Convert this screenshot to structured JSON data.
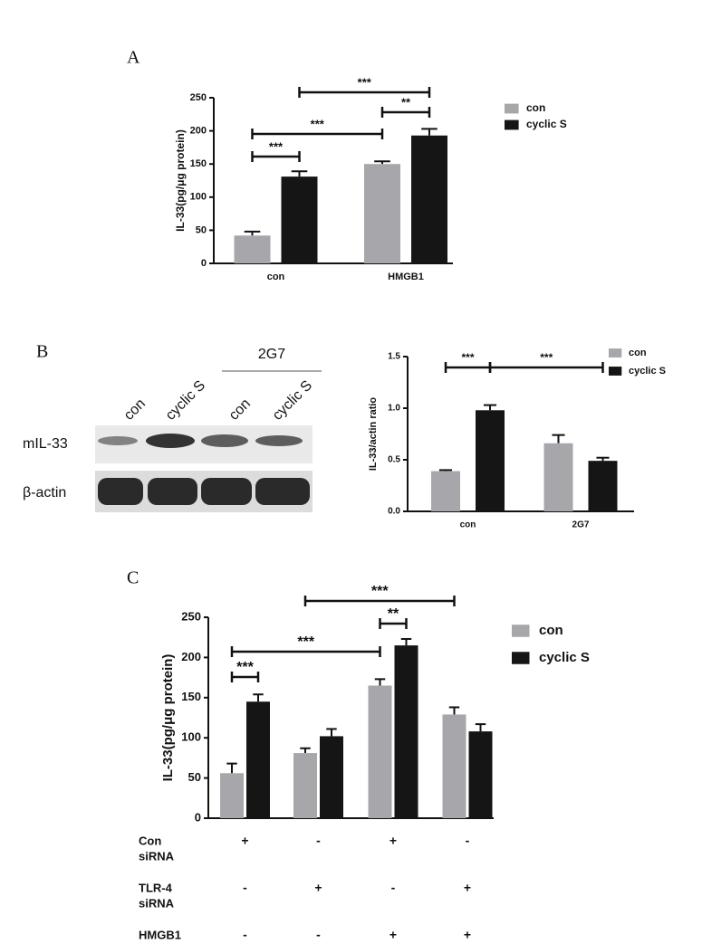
{
  "chart_data": [
    {
      "type": "bar",
      "panel_label": "A",
      "y_label": "IL-33(pg/μg protein)",
      "categories": [
        "con",
        "HMGB1"
      ],
      "series": [
        {
          "name": "con",
          "color": "#a7a6ab",
          "values": [
            42,
            150
          ],
          "errors": [
            6,
            4
          ]
        },
        {
          "name": "cyclic S",
          "color": "#151515",
          "values": [
            131,
            193
          ],
          "errors": [
            8,
            10
          ]
        }
      ],
      "ylim": [
        0,
        250
      ],
      "yticks": [
        0,
        50,
        100,
        150,
        200,
        250
      ],
      "annotations": [
        "***",
        "***",
        "**",
        "***"
      ],
      "legend": "right"
    },
    {
      "type": "bar",
      "panel_label": "B",
      "y_label": "IL-33/actin ratio",
      "categories": [
        "con",
        "2G7"
      ],
      "series": [
        {
          "name": "con",
          "color": "#a7a6ab",
          "values": [
            0.39,
            0.66
          ],
          "errors": [
            0.01,
            0.08
          ]
        },
        {
          "name": "cyclic S",
          "color": "#151515",
          "values": [
            0.98,
            0.49
          ],
          "errors": [
            0.05,
            0.03
          ]
        }
      ],
      "ylim": [
        0,
        1.5
      ],
      "yticks": [
        {
          "value": 0,
          "label": "0.0"
        },
        {
          "value": 0.5,
          "label": "0.5"
        },
        {
          "value": 1,
          "label": "1.0"
        },
        {
          "value": 1.5,
          "label": "1.5"
        }
      ],
      "annotations": [
        "***",
        "***"
      ],
      "legend": "right",
      "blot": {
        "rows": [
          "mIL-33",
          "β-actin"
        ],
        "lanes": [
          "con",
          "cyclic S",
          "con",
          "cyclic S"
        ],
        "treatment": "2G7"
      }
    },
    {
      "type": "bar",
      "panel_label": "C",
      "y_label": "IL-33(pg/μg protein)",
      "categories": [
        null,
        null,
        null,
        null
      ],
      "series": [
        {
          "name": "con",
          "color": "#a7a6ab",
          "values": [
            56,
            81,
            165,
            129
          ],
          "errors": [
            12,
            6,
            8,
            9
          ]
        },
        {
          "name": "cyclic S",
          "color": "#151515",
          "values": [
            145,
            102,
            215,
            108
          ],
          "errors": [
            9,
            9,
            8,
            9
          ]
        }
      ],
      "ylim": [
        0,
        250
      ],
      "yticks": [
        0,
        50,
        100,
        150,
        200,
        250
      ],
      "annotations": [
        "***",
        "***",
        "**",
        "***"
      ],
      "legend": "right",
      "conditions": [
        {
          "label_lines": [
            "Con",
            "siRNA"
          ],
          "signs": [
            "+",
            "-",
            "+",
            "-"
          ]
        },
        {
          "label_lines": [
            "TLR-4",
            "siRNA"
          ],
          "signs": [
            "-",
            "+",
            "-",
            "+"
          ]
        },
        {
          "label_lines": [
            "HMGB1"
          ],
          "signs": [
            "-",
            "-",
            "+",
            "+"
          ]
        }
      ]
    }
  ]
}
